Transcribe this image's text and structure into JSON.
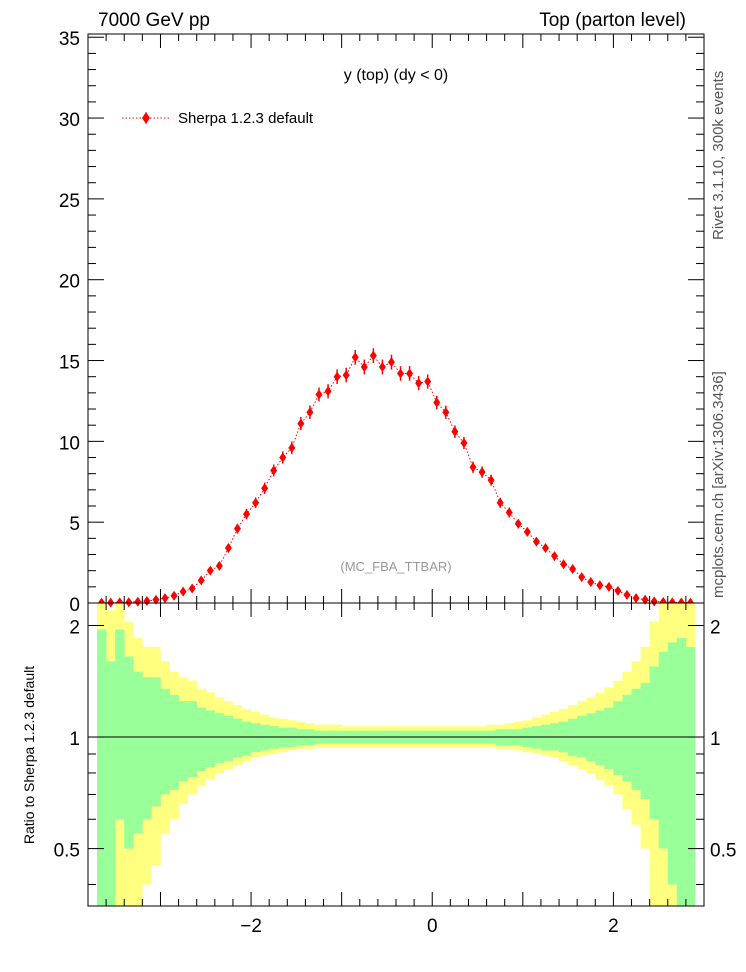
{
  "header": {
    "left": "7000 GeV pp",
    "right": "Top (parton level)"
  },
  "side_labels": {
    "rivet": "Rivet 3.1.10,  300k events",
    "mcplots": "mcplots.cern.ch [arXiv:1306.3436]"
  },
  "colors": {
    "series": "#ff0000",
    "band_inner": "#99ff99",
    "band_outer": "#ffff80"
  },
  "chart_data": [
    {
      "type": "scatter",
      "title": "y (top) (dy < 0)",
      "watermark": "(MC_FBA_TTBAR)",
      "legend": [
        "Sherpa 1.2.3 default"
      ],
      "legend_position": "top-left",
      "xlim": [
        -3.8,
        3.0
      ],
      "ylim": [
        0,
        35.2
      ],
      "yticks": [
        0,
        5,
        10,
        15,
        20,
        25,
        30,
        35
      ],
      "ytick_labels": [
        "0",
        "5",
        "10",
        "15",
        "20",
        "25",
        "30",
        "35"
      ],
      "bin_width": 0.1,
      "x": [
        -3.65,
        -3.55,
        -3.45,
        -3.35,
        -3.25,
        -3.15,
        -3.05,
        -2.95,
        -2.85,
        -2.75,
        -2.65,
        -2.55,
        -2.45,
        -2.35,
        -2.25,
        -2.15,
        -2.05,
        -1.95,
        -1.85,
        -1.75,
        -1.65,
        -1.55,
        -1.45,
        -1.35,
        -1.25,
        -1.15,
        -1.05,
        -0.95,
        -0.85,
        -0.75,
        -0.65,
        -0.55,
        -0.45,
        -0.35,
        -0.25,
        -0.15,
        -0.05,
        0.05,
        0.15,
        0.25,
        0.35,
        0.45,
        0.55,
        0.65,
        0.75,
        0.85,
        0.95,
        1.05,
        1.15,
        1.25,
        1.35,
        1.45,
        1.55,
        1.65,
        1.75,
        1.85,
        1.95,
        2.05,
        2.15,
        2.25,
        2.35,
        2.45,
        2.55,
        2.65,
        2.75,
        2.85
      ],
      "series": [
        {
          "name": "Sherpa 1.2.3 default",
          "values": [
            0.02,
            0.02,
            0.04,
            0.05,
            0.08,
            0.12,
            0.2,
            0.3,
            0.45,
            0.7,
            0.9,
            1.4,
            2.0,
            2.3,
            3.4,
            4.6,
            5.5,
            6.2,
            7.1,
            8.2,
            9.0,
            9.6,
            11.1,
            11.8,
            12.9,
            13.1,
            14.0,
            14.1,
            15.2,
            14.6,
            15.3,
            14.6,
            14.9,
            14.2,
            14.2,
            13.6,
            13.7,
            12.4,
            11.8,
            10.6,
            9.9,
            8.4,
            8.1,
            7.6,
            6.2,
            5.6,
            4.9,
            4.4,
            3.8,
            3.4,
            2.9,
            2.4,
            2.1,
            1.6,
            1.3,
            1.1,
            1.0,
            0.75,
            0.5,
            0.3,
            0.2,
            0.1,
            0.06,
            0.04,
            0.03,
            0.02
          ],
          "errors": [
            0.02,
            0.02,
            0.03,
            0.03,
            0.04,
            0.05,
            0.07,
            0.09,
            0.11,
            0.13,
            0.15,
            0.18,
            0.21,
            0.22,
            0.26,
            0.3,
            0.32,
            0.33,
            0.35,
            0.37,
            0.38,
            0.39,
            0.41,
            0.42,
            0.43,
            0.44,
            0.45,
            0.45,
            0.46,
            0.46,
            0.46,
            0.46,
            0.46,
            0.45,
            0.45,
            0.44,
            0.44,
            0.42,
            0.41,
            0.39,
            0.38,
            0.35,
            0.35,
            0.34,
            0.31,
            0.3,
            0.28,
            0.27,
            0.25,
            0.23,
            0.21,
            0.2,
            0.18,
            0.16,
            0.14,
            0.13,
            0.12,
            0.11,
            0.09,
            0.07,
            0.06,
            0.04,
            0.03,
            0.03,
            0.02,
            0.02
          ]
        }
      ]
    },
    {
      "type": "area",
      "ylabel": "Ratio to Sherpa 1.2.3 default",
      "xlim": [
        -3.8,
        3.0
      ],
      "ylim": [
        0.35,
        2.3
      ],
      "xticks": [
        -2,
        0,
        2
      ],
      "xtick_labels": [
        "−2",
        "0",
        "2"
      ],
      "yticks": [
        0.5,
        1,
        2
      ],
      "ytick_labels": [
        "0.5",
        "1",
        "2"
      ],
      "reference_line": 1,
      "bin_edges": [
        -3.7,
        -3.6,
        -3.5,
        -3.4,
        -3.3,
        -3.2,
        -3.1,
        -3.0,
        -2.9,
        -2.8,
        -2.7,
        -2.6,
        -2.5,
        -2.4,
        -2.3,
        -2.2,
        -2.1,
        -2.0,
        -1.9,
        -1.8,
        -1.7,
        -1.6,
        -1.5,
        -1.4,
        -1.3,
        -1.2,
        -1.1,
        -1.0,
        -0.9,
        -0.8,
        -0.7,
        -0.6,
        -0.5,
        -0.4,
        -0.3,
        -0.2,
        -0.1,
        0.0,
        0.1,
        0.2,
        0.3,
        0.4,
        0.5,
        0.6,
        0.7,
        0.8,
        0.9,
        1.0,
        1.1,
        1.2,
        1.3,
        1.4,
        1.5,
        1.6,
        1.7,
        1.8,
        1.9,
        2.0,
        2.1,
        2.2,
        2.3,
        2.4,
        2.5,
        2.6,
        2.7,
        2.8,
        2.9
      ],
      "bands": [
        {
          "name": "inner",
          "upper": [
            1.95,
            1.6,
            1.95,
            1.65,
            1.5,
            1.45,
            1.45,
            1.35,
            1.3,
            1.25,
            1.25,
            1.2,
            1.18,
            1.16,
            1.14,
            1.12,
            1.1,
            1.09,
            1.08,
            1.07,
            1.06,
            1.06,
            1.05,
            1.05,
            1.04,
            1.04,
            1.04,
            1.04,
            1.04,
            1.04,
            1.04,
            1.04,
            1.04,
            1.04,
            1.04,
            1.04,
            1.04,
            1.04,
            1.04,
            1.04,
            1.04,
            1.04,
            1.04,
            1.04,
            1.05,
            1.05,
            1.05,
            1.06,
            1.07,
            1.08,
            1.09,
            1.1,
            1.12,
            1.14,
            1.16,
            1.18,
            1.2,
            1.25,
            1.3,
            1.35,
            1.4,
            1.55,
            1.7,
            1.8,
            1.85,
            1.75
          ],
          "lower": [
            0.35,
            0.35,
            0.6,
            0.5,
            0.55,
            0.6,
            0.65,
            0.7,
            0.72,
            0.76,
            0.78,
            0.81,
            0.83,
            0.85,
            0.86,
            0.88,
            0.89,
            0.91,
            0.92,
            0.93,
            0.94,
            0.94,
            0.95,
            0.95,
            0.96,
            0.96,
            0.96,
            0.96,
            0.96,
            0.96,
            0.96,
            0.96,
            0.96,
            0.96,
            0.96,
            0.96,
            0.96,
            0.96,
            0.96,
            0.96,
            0.96,
            0.96,
            0.96,
            0.96,
            0.95,
            0.95,
            0.95,
            0.94,
            0.93,
            0.92,
            0.92,
            0.91,
            0.89,
            0.88,
            0.86,
            0.84,
            0.82,
            0.79,
            0.76,
            0.72,
            0.68,
            0.6,
            0.5,
            0.4,
            0.35,
            0.35
          ]
        },
        {
          "name": "outer",
          "upper": [
            2.3,
            2.2,
            2.3,
            2.05,
            1.85,
            1.75,
            1.75,
            1.6,
            1.5,
            1.45,
            1.42,
            1.35,
            1.32,
            1.28,
            1.25,
            1.22,
            1.19,
            1.17,
            1.15,
            1.13,
            1.12,
            1.11,
            1.1,
            1.09,
            1.08,
            1.08,
            1.08,
            1.07,
            1.07,
            1.07,
            1.07,
            1.07,
            1.07,
            1.07,
            1.07,
            1.07,
            1.07,
            1.07,
            1.07,
            1.07,
            1.07,
            1.07,
            1.07,
            1.08,
            1.08,
            1.09,
            1.1,
            1.11,
            1.13,
            1.15,
            1.17,
            1.19,
            1.22,
            1.25,
            1.28,
            1.32,
            1.36,
            1.42,
            1.5,
            1.6,
            1.75,
            2.05,
            2.3,
            2.3,
            2.3,
            2.3
          ],
          "lower": [
            0.35,
            0.35,
            0.35,
            0.35,
            0.35,
            0.4,
            0.45,
            0.55,
            0.6,
            0.66,
            0.7,
            0.74,
            0.77,
            0.8,
            0.82,
            0.84,
            0.86,
            0.88,
            0.89,
            0.9,
            0.91,
            0.92,
            0.93,
            0.93,
            0.94,
            0.94,
            0.94,
            0.94,
            0.94,
            0.94,
            0.94,
            0.94,
            0.94,
            0.94,
            0.94,
            0.94,
            0.94,
            0.94,
            0.94,
            0.94,
            0.94,
            0.94,
            0.94,
            0.94,
            0.93,
            0.93,
            0.92,
            0.91,
            0.9,
            0.89,
            0.88,
            0.86,
            0.84,
            0.82,
            0.8,
            0.77,
            0.74,
            0.7,
            0.64,
            0.58,
            0.5,
            0.35,
            0.35,
            0.35,
            0.35,
            0.35
          ]
        }
      ]
    }
  ]
}
